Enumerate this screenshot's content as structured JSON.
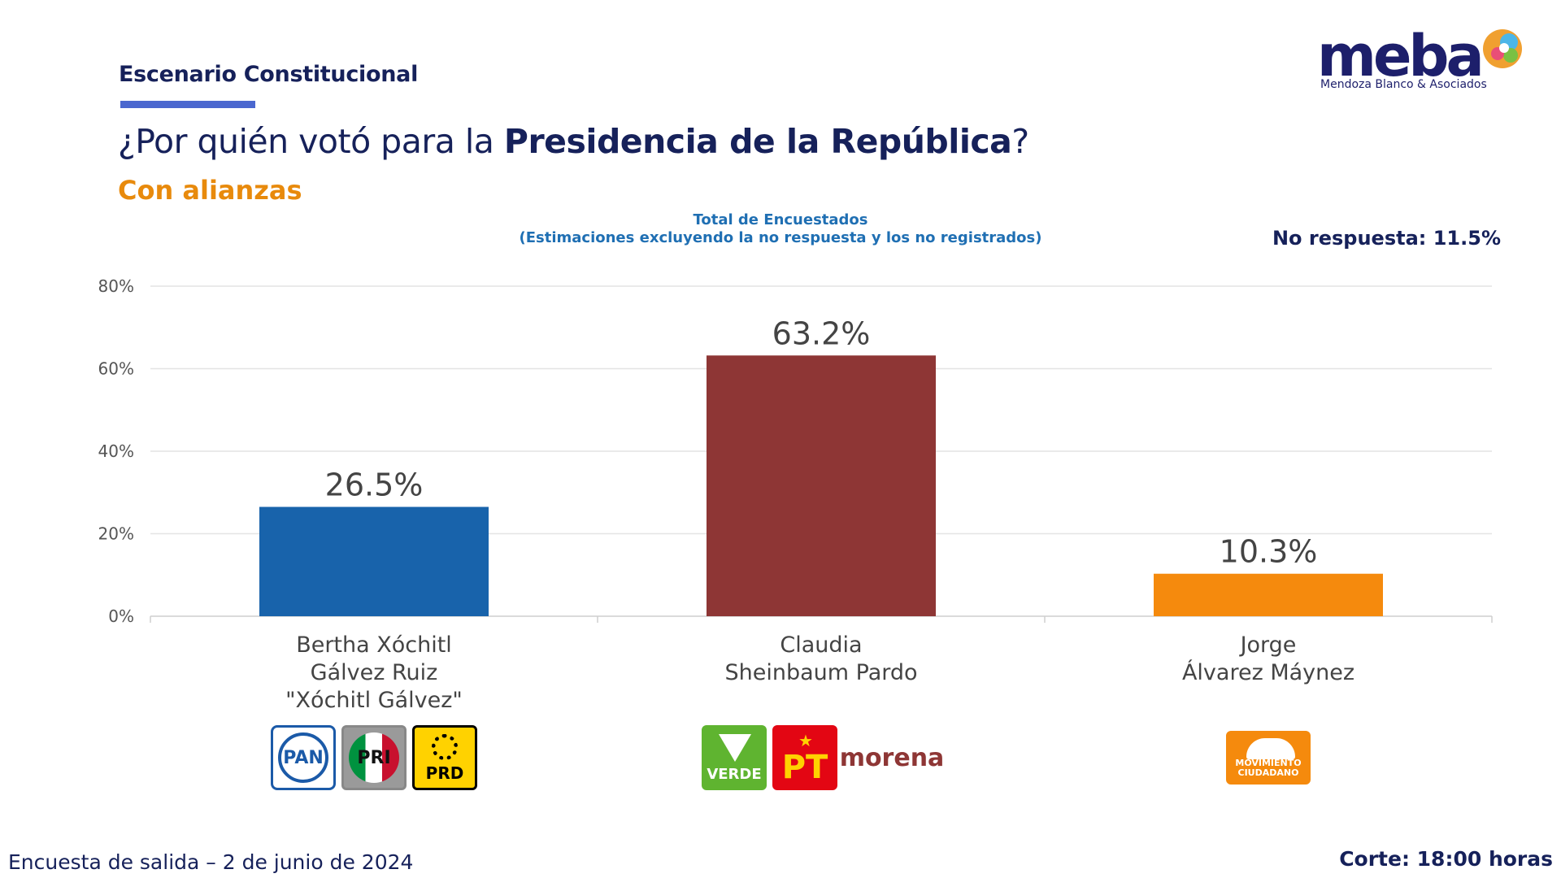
{
  "header": {
    "section_label": "Escenario Constitucional",
    "question_prefix": "¿Por quién votó para la ",
    "question_bold": "Presidencia de la República",
    "question_suffix": "?",
    "subtitle": "Con alianzas",
    "total_line1": "Total de Encuestados",
    "total_line2": "(Estimaciones excluyendo la no respuesta y los no registrados)",
    "no_response": "No respuesta: 11.5%"
  },
  "logo": {
    "word": "meba",
    "tagline": "Mendoza Blanco & Asociados"
  },
  "chart_data": {
    "type": "bar",
    "categories": [
      "Bertha Xóchitl\nGálvez Ruiz\n\"Xóchitl Gálvez\"",
      "Claudia\nSheinbaum Pardo",
      "Jorge\nÁlvarez Máynez"
    ],
    "values": [
      26.5,
      63.2,
      10.3
    ],
    "value_labels": [
      "26.5%",
      "63.2%",
      "10.3%"
    ],
    "colors": [
      "#1863ab",
      "#8e3635",
      "#f58a0d"
    ],
    "ylim": [
      0,
      80
    ],
    "y_ticks": [
      0,
      20,
      40,
      60,
      80
    ],
    "y_tick_labels": [
      "0%",
      "20%",
      "40%",
      "60%",
      "80%"
    ],
    "grid": true,
    "xlabel": "",
    "ylabel": ""
  },
  "parties": [
    {
      "candidate_index": 0,
      "logos": [
        {
          "name": "pan-logo",
          "text": "PAN",
          "bg": "#ffffff",
          "fg": "#1b5aa8",
          "border": "#1b5aa8"
        },
        {
          "name": "pri-logo",
          "text": "PRI",
          "bg": "#ffffff",
          "fg": "#c8102e",
          "border": "#888888"
        },
        {
          "name": "prd-logo",
          "text": "PRD",
          "bg": "#ffd200",
          "fg": "#000000",
          "border": "#000000"
        }
      ]
    },
    {
      "candidate_index": 1,
      "logos": [
        {
          "name": "verde-logo",
          "text": "VERDE",
          "bg": "#5fb430",
          "fg": "#ffffff",
          "border": "#5fb430"
        },
        {
          "name": "pt-logo",
          "text": "PT",
          "bg": "#e30613",
          "fg": "#ffd200",
          "border": "#e30613"
        },
        {
          "name": "morena-logo",
          "text": "morena",
          "bg": "#ffffff",
          "fg": "#8e3635",
          "border": "#ffffff"
        }
      ]
    },
    {
      "candidate_index": 2,
      "logos": [
        {
          "name": "movimiento-ciudadano-logo",
          "text": "MOVIMIENTO CIUDADANO",
          "bg": "#f58a0d",
          "fg": "#ffffff",
          "border": "#f58a0d"
        }
      ]
    }
  ],
  "footer": {
    "left": "Encuesta de salida – 2 de junio de 2024",
    "right": "Corte: 18:00 horas"
  }
}
